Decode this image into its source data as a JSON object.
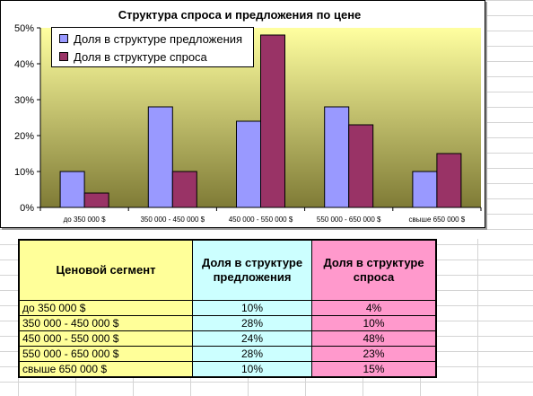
{
  "chart_data": {
    "type": "bar",
    "title": "Структура спроса и предложения по цене",
    "categories": [
      "до 350 000 $",
      "350 000 - 450 000 $",
      "450 000 - 550 000 $",
      "550 000 - 650 000 $",
      "свыше 650 000 $"
    ],
    "series": [
      {
        "name": "Доля в структуре предложения",
        "values": [
          10,
          28,
          24,
          28,
          10
        ],
        "color": "#9999ff"
      },
      {
        "name": "Доля в структуре спроса",
        "values": [
          4,
          10,
          48,
          23,
          15
        ],
        "color": "#993366"
      }
    ],
    "ylim": [
      0,
      50
    ],
    "yticks": [
      "0%",
      "10%",
      "20%",
      "30%",
      "40%",
      "50%"
    ],
    "legend_position": "top-left",
    "plot_background": "yellow-to-olive gradient",
    "grid": false
  },
  "table": {
    "headers": [
      "Ценовой сегмент",
      "Доля в структуре предложения",
      "Доля в структуре спроса"
    ],
    "rows": [
      {
        "segment": "до 350 000 $",
        "supply": "10%",
        "demand": "4%"
      },
      {
        "segment": "350 000 - 450 000 $",
        "supply": "28%",
        "demand": "10%"
      },
      {
        "segment": "450 000 - 550 000 $",
        "supply": "24%",
        "demand": "48%"
      },
      {
        "segment": "550 000 - 650 000 $",
        "supply": "28%",
        "demand": "23%"
      },
      {
        "segment": "свыше 650 000 $",
        "supply": "10%",
        "demand": "15%"
      }
    ],
    "column_colors": [
      "#ffff99",
      "#ccffff",
      "#ff99cc"
    ]
  }
}
